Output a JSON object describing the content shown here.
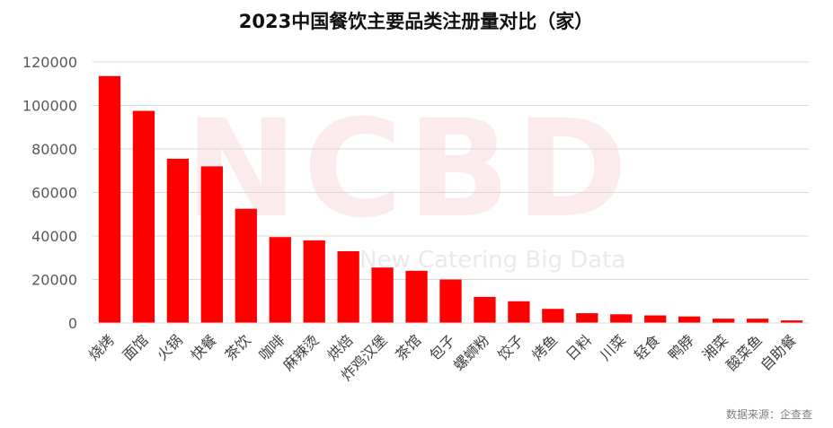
{
  "watermark": {
    "main": "NCBD",
    "sub": "New Catering Big Data"
  },
  "source_note": "数据来源：企查查",
  "chart_data": {
    "type": "bar",
    "title": "2023中国餐饮主要品类注册量对比（家）",
    "xlabel": "",
    "ylabel": "",
    "ylim": [
      0,
      120000
    ],
    "yticks": [
      0,
      20000,
      40000,
      60000,
      80000,
      100000,
      120000
    ],
    "grid": true,
    "bar_color": "#ff0000",
    "categories": [
      "烧烤",
      "面馆",
      "火锅",
      "快餐",
      "茶饮",
      "咖啡",
      "麻辣烫",
      "烘焙",
      "炸鸡汉堡",
      "茶馆",
      "包子",
      "螺蛳粉",
      "饺子",
      "烤鱼",
      "日料",
      "川菜",
      "轻食",
      "鸭脖",
      "湘菜",
      "酸菜鱼",
      "自助餐"
    ],
    "values": [
      113500,
      97500,
      75500,
      72000,
      52500,
      39500,
      38000,
      33000,
      25500,
      24000,
      20000,
      12000,
      10000,
      6500,
      4500,
      4000,
      3500,
      3000,
      2000,
      2000,
      1200
    ]
  }
}
